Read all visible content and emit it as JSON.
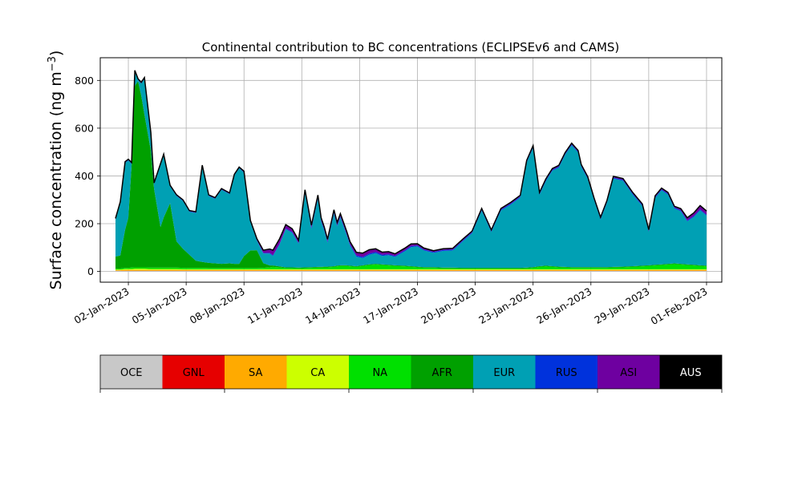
{
  "chart_data": {
    "type": "area",
    "stacked": true,
    "title": "Continental contribution to BC concentrations (ECLIPSEv6 and CAMS)",
    "ylabel_main": "Surface concentration (ng m",
    "ylabel_sup": "−3",
    "ylabel_close": ")",
    "ylim": [
      -45,
      895
    ],
    "xlim": [
      "2022-12-31T13:00",
      "2023-02-01T19:00"
    ],
    "yticks": [
      0,
      200,
      400,
      600,
      800
    ],
    "xticks": [
      "2023-01-02",
      "2023-01-05",
      "2023-01-08",
      "2023-01-11",
      "2023-01-14",
      "2023-01-17",
      "2023-01-20",
      "2023-01-23",
      "2023-01-26",
      "2023-01-29",
      "2023-02-01"
    ],
    "xtick_labels": [
      "02-Jan-2023",
      "05-Jan-2023",
      "08-Jan-2023",
      "11-Jan-2023",
      "14-Jan-2023",
      "17-Jan-2023",
      "20-Jan-2023",
      "23-Jan-2023",
      "26-Jan-2023",
      "29-Jan-2023",
      "01-Feb-2023"
    ],
    "grid": true,
    "legend_position": "below",
    "legend": [
      {
        "label": "OCE",
        "color": "#c8c8c8",
        "text_color": "#000000"
      },
      {
        "label": "GNL",
        "color": "#e60000",
        "text_color": "#000000"
      },
      {
        "label": "SA",
        "color": "#ffaa00",
        "text_color": "#000000"
      },
      {
        "label": "CA",
        "color": "#ccff00",
        "text_color": "#000000"
      },
      {
        "label": "NA",
        "color": "#00e000",
        "text_color": "#000000"
      },
      {
        "label": "AFR",
        "color": "#00a000",
        "text_color": "#000000"
      },
      {
        "label": "EUR",
        "color": "#00a0b4",
        "text_color": "#000000"
      },
      {
        "label": "RUS",
        "color": "#0032dc",
        "text_color": "#000000"
      },
      {
        "label": "ASI",
        "color": "#6e00a0",
        "text_color": "#000000"
      },
      {
        "label": "AUS",
        "color": "#000000",
        "text_color": "#ffffff"
      }
    ],
    "x": [
      "2023-01-01T08:00",
      "2023-01-01T14:00",
      "2023-01-01T20:00",
      "2023-01-02T00:00",
      "2023-01-02T04:00",
      "2023-01-02T08:00",
      "2023-01-02T12:00",
      "2023-01-02T16:00",
      "2023-01-02T20:00",
      "2023-01-03T04:00",
      "2023-01-03T08:00",
      "2023-01-03T16:00",
      "2023-01-03T20:00",
      "2023-01-04T04:00",
      "2023-01-04T12:00",
      "2023-01-04T20:00",
      "2023-01-05T04:00",
      "2023-01-05T12:00",
      "2023-01-05T20:00",
      "2023-01-06T04:00",
      "2023-01-06T12:00",
      "2023-01-06T20:00",
      "2023-01-07T06:00",
      "2023-01-07T12:00",
      "2023-01-07T18:00",
      "2023-01-08T00:00",
      "2023-01-08T08:00",
      "2023-01-08T16:00",
      "2023-01-09T00:00",
      "2023-01-09T08:00",
      "2023-01-09T12:00",
      "2023-01-09T20:00",
      "2023-01-10T04:00",
      "2023-01-10T12:00",
      "2023-01-10T20:00",
      "2023-01-11T04:00",
      "2023-01-11T12:00",
      "2023-01-11T20:00",
      "2023-01-12T00:00",
      "2023-01-12T04:00",
      "2023-01-12T08:00",
      "2023-01-12T16:00",
      "2023-01-12T20:00",
      "2023-01-13T00:00",
      "2023-01-13T08:00",
      "2023-01-13T12:00",
      "2023-01-13T20:00",
      "2023-01-14T04:00",
      "2023-01-14T12:00",
      "2023-01-14T20:00",
      "2023-01-15T04:00",
      "2023-01-15T12:00",
      "2023-01-15T20:00",
      "2023-01-16T08:00",
      "2023-01-16T16:00",
      "2023-01-17T00:00",
      "2023-01-17T08:00",
      "2023-01-17T20:00",
      "2023-01-18T08:00",
      "2023-01-18T20:00",
      "2023-01-19T08:00",
      "2023-01-19T20:00",
      "2023-01-20T08:00",
      "2023-01-20T20:00",
      "2023-01-21T08:00",
      "2023-01-21T20:00",
      "2023-01-22T08:00",
      "2023-01-22T16:00",
      "2023-01-23T00:00",
      "2023-01-23T08:00",
      "2023-01-23T16:00",
      "2023-01-24T00:00",
      "2023-01-24T08:00",
      "2023-01-24T16:00",
      "2023-01-25T00:00",
      "2023-01-25T08:00",
      "2023-01-25T12:00",
      "2023-01-25T20:00",
      "2023-01-26T04:00",
      "2023-01-26T12:00",
      "2023-01-26T20:00",
      "2023-01-27T04:00",
      "2023-01-27T16:00",
      "2023-01-28T04:00",
      "2023-01-28T16:00",
      "2023-01-29T00:00",
      "2023-01-29T08:00",
      "2023-01-29T16:00",
      "2023-01-30T00:00",
      "2023-01-30T08:00",
      "2023-01-30T16:00",
      "2023-01-31T00:00",
      "2023-01-31T08:00",
      "2023-01-31T16:00",
      "2023-02-01T00:00"
    ],
    "series": [
      {
        "name": "OCE",
        "color": "#c8c8c8",
        "values": [
          2,
          2,
          2,
          2,
          2,
          2,
          2,
          2,
          2,
          2,
          2,
          2,
          2,
          2,
          2,
          2,
          2,
          2,
          2,
          2,
          2,
          2,
          2,
          2,
          2,
          2,
          2,
          2,
          2,
          2,
          2,
          2,
          2,
          2,
          2,
          2,
          2,
          2,
          2,
          2,
          2,
          2,
          2,
          2,
          2,
          2,
          2,
          2,
          2,
          2,
          2,
          2,
          2,
          2,
          2,
          2,
          2,
          2,
          2,
          2,
          2,
          2,
          2,
          2,
          2,
          2,
          2,
          2,
          2,
          2,
          2,
          2,
          2,
          2,
          2,
          2,
          2,
          2,
          2,
          2,
          2,
          2,
          2,
          2,
          2,
          2,
          2,
          2,
          2,
          2,
          2,
          2,
          2,
          2,
          2
        ]
      },
      {
        "name": "GNL",
        "color": "#e60000",
        "values": [
          1,
          1,
          1,
          1,
          1,
          1,
          1,
          1,
          1,
          1,
          1,
          1,
          1,
          1,
          1,
          1,
          1,
          1,
          1,
          1,
          1,
          1,
          1,
          1,
          1,
          1,
          1,
          1,
          1,
          1,
          1,
          1,
          1,
          1,
          1,
          1,
          1,
          1,
          1,
          1,
          1,
          1,
          1,
          1,
          1,
          1,
          1,
          1,
          1,
          1,
          1,
          1,
          1,
          1,
          1,
          1,
          1,
          1,
          1,
          1,
          1,
          1,
          1,
          1,
          1,
          1,
          1,
          1,
          1,
          1,
          1,
          1,
          1,
          1,
          1,
          1,
          1,
          1,
          1,
          1,
          1,
          1,
          1,
          1,
          1,
          1,
          1,
          1,
          1,
          1,
          1,
          1,
          1,
          1,
          1
        ]
      },
      {
        "name": "SA",
        "color": "#ffaa00",
        "values": [
          2,
          2,
          3,
          3,
          3,
          3,
          3,
          3,
          3,
          3,
          3,
          3,
          3,
          3,
          3,
          3,
          3,
          3,
          3,
          3,
          3,
          3,
          3,
          3,
          3,
          3,
          3,
          3,
          3,
          3,
          3,
          3,
          3,
          3,
          3,
          3,
          3,
          3,
          3,
          3,
          3,
          3,
          3,
          3,
          3,
          3,
          3,
          3,
          3,
          3,
          3,
          3,
          3,
          3,
          3,
          3,
          3,
          3,
          3,
          3,
          3,
          3,
          3,
          3,
          3,
          3,
          3,
          3,
          3,
          3,
          3,
          3,
          3,
          3,
          3,
          3,
          3,
          3,
          3,
          3,
          3,
          3,
          3,
          3,
          3,
          3,
          3,
          3,
          3,
          3,
          3,
          3,
          3,
          3,
          3
        ]
      },
      {
        "name": "CA",
        "color": "#ccff00",
        "values": [
          3,
          3,
          4,
          4,
          4,
          5,
          5,
          5,
          5,
          4,
          4,
          4,
          4,
          4,
          4,
          3,
          3,
          3,
          3,
          3,
          3,
          3,
          3,
          3,
          3,
          3,
          3,
          3,
          3,
          3,
          3,
          3,
          3,
          3,
          3,
          3,
          3,
          3,
          3,
          3,
          3,
          3,
          3,
          3,
          3,
          3,
          3,
          3,
          3,
          3,
          3,
          3,
          3,
          3,
          3,
          3,
          3,
          3,
          3,
          3,
          3,
          3,
          3,
          3,
          3,
          3,
          3,
          3,
          3,
          3,
          3,
          3,
          3,
          3,
          3,
          3,
          3,
          3,
          3,
          3,
          3,
          3,
          3,
          3,
          3,
          3,
          3,
          3,
          3,
          3,
          3,
          3,
          3,
          3,
          3
        ]
      },
      {
        "name": "NA",
        "color": "#00e000",
        "values": [
          4,
          4,
          5,
          5,
          6,
          6,
          6,
          6,
          6,
          6,
          6,
          6,
          6,
          6,
          6,
          6,
          6,
          6,
          6,
          5,
          5,
          5,
          5,
          5,
          5,
          5,
          5,
          5,
          6,
          8,
          10,
          8,
          5,
          5,
          4,
          5,
          6,
          7,
          7,
          8,
          8,
          10,
          12,
          14,
          14,
          12,
          10,
          14,
          18,
          20,
          18,
          16,
          14,
          12,
          10,
          8,
          6,
          6,
          4,
          4,
          3,
          3,
          3,
          3,
          3,
          3,
          3,
          4,
          6,
          10,
          12,
          10,
          8,
          7,
          6,
          6,
          6,
          6,
          6,
          6,
          6,
          7,
          8,
          10,
          12,
          14,
          16,
          18,
          20,
          22,
          20,
          18,
          16,
          14,
          12
        ]
      },
      {
        "name": "AFR",
        "color": "#00a000",
        "values": [
          50,
          55,
          160,
          210,
          430,
          760,
          780,
          720,
          640,
          490,
          330,
          170,
          210,
          270,
          110,
          80,
          55,
          30,
          25,
          22,
          20,
          18,
          20,
          18,
          18,
          50,
          74,
          75,
          20,
          8,
          6,
          4,
          3,
          3,
          3,
          3,
          3,
          3,
          3,
          3,
          3,
          3,
          3,
          3,
          3,
          3,
          3,
          3,
          3,
          3,
          3,
          3,
          3,
          3,
          3,
          3,
          3,
          3,
          3,
          3,
          3,
          3,
          3,
          3,
          3,
          3,
          3,
          3,
          3,
          3,
          3,
          3,
          3,
          3,
          3,
          3,
          3,
          3,
          3,
          3,
          3,
          3,
          3,
          3,
          3,
          3,
          3,
          3,
          3,
          3,
          3,
          3,
          3,
          3,
          3
        ]
      },
      {
        "name": "EUR",
        "color": "#00a0b4",
        "values": [
          155,
          220,
          280,
          240,
          5,
          60,
          5,
          50,
          150,
          70,
          20,
          260,
          260,
          70,
          190,
          200,
          180,
          200,
          400,
          280,
          270,
          310,
          290,
          370,
          400,
          350,
          120,
          40,
          40,
          50,
          40,
          90,
          160,
          145,
          100,
          310,
          160,
          285,
          190,
          150,
          100,
          220,
          165,
          200,
          125,
          85,
          40,
          30,
          40,
          45,
          35,
          40,
          35,
          60,
          80,
          85,
          70,
          60,
          70,
          72,
          110,
          145,
          240,
          150,
          240,
          265,
          295,
          440,
          500,
          300,
          355,
          400,
          415,
          470,
          510,
          480,
          420,
          370,
          280,
          200,
          270,
          370,
          360,
          300,
          250,
          140,
          280,
          310,
          290,
          230,
          220,
          180,
          200,
          230,
          210
        ]
      },
      {
        "name": "RUS",
        "color": "#0032dc",
        "values": [
          2,
          2,
          2,
          2,
          2,
          2,
          2,
          2,
          2,
          2,
          2,
          2,
          2,
          2,
          2,
          2,
          2,
          2,
          2,
          2,
          2,
          2,
          2,
          2,
          2,
          2,
          2,
          3,
          3,
          3,
          3,
          3,
          3,
          4,
          4,
          4,
          5,
          5,
          5,
          6,
          6,
          5,
          5,
          5,
          5,
          5,
          5,
          5,
          5,
          5,
          5,
          4,
          4,
          4,
          4,
          4,
          4,
          4,
          4,
          4,
          4,
          4,
          4,
          4,
          4,
          4,
          4,
          4,
          4,
          4,
          4,
          4,
          4,
          4,
          4,
          4,
          4,
          4,
          4,
          4,
          4,
          4,
          4,
          4,
          4,
          4,
          4,
          4,
          4,
          4,
          4,
          4,
          4,
          4,
          4
        ]
      },
      {
        "name": "ASI",
        "color": "#6e00a0",
        "values": [
          2,
          2,
          2,
          2,
          2,
          2,
          2,
          2,
          2,
          2,
          2,
          2,
          2,
          2,
          2,
          2,
          2,
          2,
          2,
          2,
          2,
          2,
          2,
          2,
          2,
          3,
          3,
          4,
          10,
          15,
          20,
          20,
          15,
          12,
          10,
          10,
          10,
          10,
          10,
          8,
          8,
          10,
          10,
          10,
          10,
          10,
          12,
          15,
          15,
          12,
          10,
          10,
          8,
          8,
          8,
          6,
          5,
          4,
          4,
          4,
          4,
          4,
          4,
          4,
          4,
          4,
          4,
          4,
          4,
          4,
          4,
          4,
          4,
          4,
          4,
          4,
          4,
          4,
          4,
          4,
          4,
          4,
          4,
          4,
          4,
          4,
          4,
          4,
          4,
          4,
          6,
          10,
          12,
          15,
          14
        ]
      },
      {
        "name": "AUS",
        "color": "#000000",
        "values": [
          1,
          1,
          1,
          1,
          1,
          1,
          1,
          1,
          1,
          1,
          1,
          1,
          1,
          1,
          1,
          1,
          1,
          1,
          1,
          1,
          1,
          1,
          1,
          1,
          1,
          1,
          1,
          1,
          1,
          1,
          1,
          1,
          1,
          1,
          1,
          1,
          1,
          1,
          1,
          1,
          1,
          1,
          1,
          1,
          1,
          1,
          1,
          1,
          1,
          1,
          1,
          1,
          1,
          1,
          1,
          1,
          1,
          1,
          1,
          1,
          1,
          1,
          1,
          1,
          1,
          1,
          1,
          1,
          1,
          1,
          1,
          1,
          1,
          1,
          1,
          1,
          1,
          1,
          1,
          1,
          1,
          1,
          1,
          1,
          1,
          1,
          1,
          1,
          1,
          1,
          1,
          1,
          1,
          1,
          1
        ]
      }
    ]
  }
}
